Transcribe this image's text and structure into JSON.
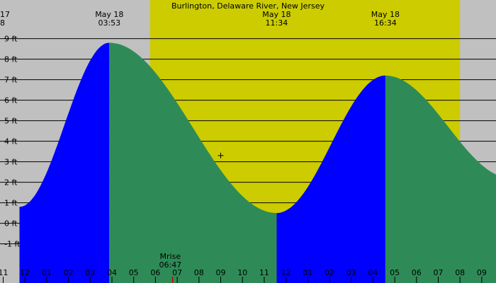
{
  "chart_data": {
    "type": "area",
    "title": "Burlington, Delaware River, New Jersey",
    "units": "ft",
    "x_unit": "hour of day",
    "xlim": [
      0.75,
      23.35
    ],
    "ylim": [
      -2.3,
      10.7
    ],
    "grid": true,
    "legend": "none",
    "y_ticks": [
      {
        "value": -1,
        "label": "-1 ft"
      },
      {
        "value": 0,
        "label": "0 ft"
      },
      {
        "value": 1,
        "label": "1 ft"
      },
      {
        "value": 2,
        "label": "2 ft"
      },
      {
        "value": 3,
        "label": "3 ft"
      },
      {
        "value": 4,
        "label": "4 ft"
      },
      {
        "value": 5,
        "label": "5 ft"
      },
      {
        "value": 6,
        "label": "6 ft"
      },
      {
        "value": 7,
        "label": "7 ft"
      },
      {
        "value": 8,
        "label": "8 ft"
      },
      {
        "value": 9,
        "label": "9 ft"
      }
    ],
    "x_ticks": [
      {
        "value": 0,
        "label": "11"
      },
      {
        "value": 1,
        "label": "12"
      },
      {
        "value": 2,
        "label": "01"
      },
      {
        "value": 3,
        "label": "02"
      },
      {
        "value": 4,
        "label": "03"
      },
      {
        "value": 5,
        "label": "04"
      },
      {
        "value": 6,
        "label": "05"
      },
      {
        "value": 7,
        "label": "06"
      },
      {
        "value": 8,
        "label": "07"
      },
      {
        "value": 9,
        "label": "08"
      },
      {
        "value": 10,
        "label": "09"
      },
      {
        "value": 11,
        "label": "10"
      },
      {
        "value": 12,
        "label": "11"
      },
      {
        "value": 13,
        "label": "12"
      },
      {
        "value": 14,
        "label": "01"
      },
      {
        "value": 15,
        "label": "02"
      },
      {
        "value": 16,
        "label": "03"
      },
      {
        "value": 17,
        "label": "04"
      },
      {
        "value": 18,
        "label": "05"
      },
      {
        "value": 19,
        "label": "06"
      },
      {
        "value": 20,
        "label": "07"
      },
      {
        "value": 21,
        "label": "08"
      },
      {
        "value": 22,
        "label": "09"
      }
    ],
    "daylight": {
      "start": 6.75,
      "end": 21.0
    },
    "tide_curve": [
      {
        "t": 0.75,
        "h": 0.8
      },
      {
        "t": 4.88,
        "h": 8.8
      },
      {
        "t": 12.57,
        "h": 0.5
      },
      {
        "t": 17.57,
        "h": 7.2
      },
      {
        "t": 23.35,
        "h": 2.2
      }
    ],
    "extremes": [
      {
        "type": "high",
        "t": 4.88,
        "h": 8.8,
        "date": "May 18",
        "time": "03:53"
      },
      {
        "type": "low",
        "t": 12.57,
        "h": 0.5,
        "date": "May 18",
        "time": "11:34"
      },
      {
        "type": "high",
        "t": 17.57,
        "h": 7.2,
        "date": "May 18",
        "time": "16:34"
      }
    ],
    "marker": {
      "t": 10.0,
      "h": 3.3
    },
    "moonrise": {
      "t": 7.78,
      "label": "Mrise",
      "time": "06:47"
    },
    "edge_top_left": [
      "17",
      "8"
    ],
    "colors": {
      "background": "#c0c0c0",
      "daylight": "#cccc00",
      "rising": "#0000ff",
      "falling": "#2e8b57",
      "grid": "#000000",
      "moonrise_tick": "#cc0000"
    }
  }
}
